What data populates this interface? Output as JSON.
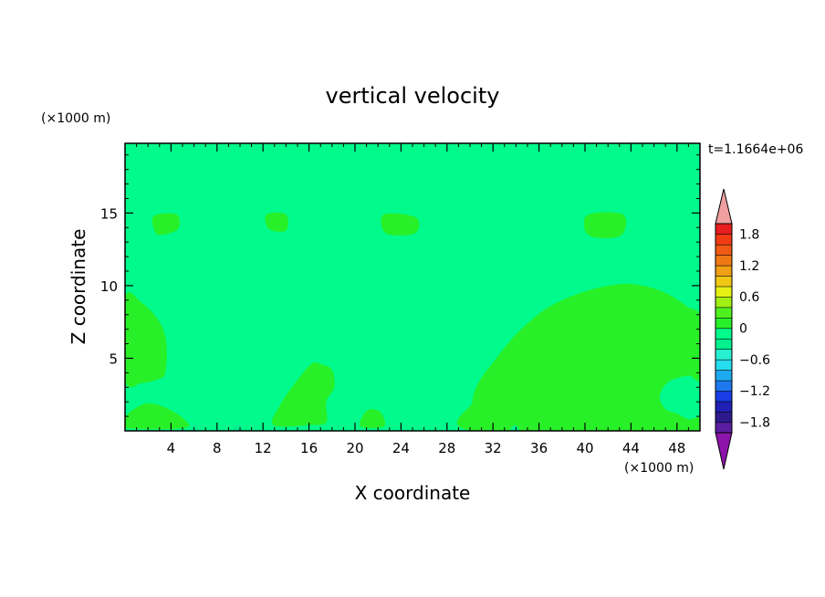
{
  "chart_data": {
    "type": "heatmap",
    "title": "vertical velocity",
    "xlabel": "X coordinate",
    "ylabel": "Z coordinate",
    "x_unit": "(×1000 m)",
    "y_unit": "(×1000 m)",
    "time_label": "t=1.1664e+06",
    "xlim": [
      0,
      50
    ],
    "ylim": [
      0,
      19.8
    ],
    "x_ticks": [
      4,
      8,
      12,
      16,
      20,
      24,
      28,
      32,
      36,
      40,
      44,
      48
    ],
    "y_ticks": [
      5,
      10,
      15
    ],
    "background_level": "-0.2 to 0",
    "colorbar": {
      "levels": [
        -2,
        -1.8,
        -1.6,
        -1.4,
        -1.2,
        -1,
        -0.8,
        -0.6,
        -0.4,
        -0.2,
        0,
        0.2,
        0.4,
        0.6,
        0.8,
        1,
        1.2,
        1.4,
        1.6,
        1.8,
        2
      ],
      "tick_labels": [
        "1.8",
        "1.2",
        "0.6",
        "0",
        "−0.6",
        "−1.2",
        "−1.8"
      ],
      "tick_values": [
        1.8,
        1.2,
        0.6,
        0,
        -0.6,
        -1.2,
        -1.8
      ],
      "colors": [
        "#5a1ea0",
        "#2d1b8e",
        "#2020b4",
        "#1a3ce6",
        "#1e78f0",
        "#1eaaf0",
        "#28dcf0",
        "#28f0d2",
        "#00f090",
        "#00fa8c",
        "#28f028",
        "#50f01e",
        "#a0f014",
        "#e6f014",
        "#f0c814",
        "#f0a014",
        "#f07814",
        "#f05a14",
        "#f03c14",
        "#e61e1e"
      ],
      "over_color": "#f0a0a0",
      "under_color": "#8c14aa"
    },
    "regions_positive": [
      {
        "level": "0 to 0.2",
        "outline": [
          [
            0,
            9.2
          ],
          [
            1.5,
            8.8
          ],
          [
            3,
            7.5
          ],
          [
            3.6,
            6
          ],
          [
            3.5,
            4
          ],
          [
            3,
            3.6
          ],
          [
            1.5,
            3.3
          ],
          [
            0,
            3.5
          ]
        ]
      },
      {
        "level": "0 to 0.2",
        "outline": [
          [
            30.4,
            0
          ],
          [
            30.2,
            2
          ],
          [
            30.8,
            3.4
          ],
          [
            32,
            4.7
          ],
          [
            33.5,
            6.2
          ],
          [
            35,
            7.4
          ],
          [
            37,
            8.6
          ],
          [
            40,
            9.6
          ],
          [
            43,
            10.1
          ],
          [
            45,
            10
          ],
          [
            47,
            9.5
          ],
          [
            49,
            8.5
          ],
          [
            50,
            7.8
          ],
          [
            50,
            3.7
          ],
          [
            49,
            3.8
          ],
          [
            47.3,
            3.4
          ],
          [
            46.5,
            2.4
          ],
          [
            47,
            1.5
          ],
          [
            48,
            1.2
          ],
          [
            49,
            0.8
          ],
          [
            50,
            0.9
          ],
          [
            50,
            0
          ]
        ]
      },
      {
        "level": "0 to 0.2",
        "outline": [
          [
            12.9,
            0.4
          ],
          [
            13.5,
            1.8
          ],
          [
            14.8,
            3.3
          ],
          [
            16.2,
            4.6
          ],
          [
            17,
            4.6
          ],
          [
            18,
            4.2
          ],
          [
            18.2,
            3
          ],
          [
            17.5,
            2
          ],
          [
            17.5,
            0.6
          ],
          [
            16,
            0.4
          ]
        ]
      },
      {
        "level": "0 to 0.2",
        "outline": [
          [
            0,
            0.9
          ],
          [
            0.8,
            1.5
          ],
          [
            2,
            1.9
          ],
          [
            3.5,
            1.6
          ],
          [
            5,
            0.9
          ],
          [
            5.2,
            0.2
          ],
          [
            0,
            0.2
          ]
        ]
      },
      {
        "level": "0 to 0.2",
        "outline": [
          [
            20.5,
            0.3
          ],
          [
            20.8,
            1.2
          ],
          [
            21.5,
            1.5
          ],
          [
            22.3,
            1.2
          ],
          [
            22.5,
            0.3
          ]
        ]
      },
      {
        "level": "0 to 0.2",
        "outline": [
          [
            2.5,
            14.8
          ],
          [
            4.5,
            14.9
          ],
          [
            4.6,
            13.9
          ],
          [
            3.2,
            13.5
          ],
          [
            2.6,
            13.7
          ]
        ]
      },
      {
        "level": "0 to 0.2",
        "outline": [
          [
            12.3,
            14.9
          ],
          [
            14,
            14.9
          ],
          [
            14,
            13.8
          ],
          [
            12.5,
            13.9
          ]
        ]
      },
      {
        "level": "0 to 0.2",
        "outline": [
          [
            22.5,
            14.9
          ],
          [
            25.3,
            14.7
          ],
          [
            25.2,
            13.6
          ],
          [
            22.7,
            13.6
          ]
        ]
      },
      {
        "level": "0 to 0.2",
        "outline": [
          [
            40.3,
            14.9
          ],
          [
            43.3,
            14.9
          ],
          [
            43.2,
            13.5
          ],
          [
            41,
            13.3
          ],
          [
            40,
            13.8
          ]
        ]
      }
    ],
    "regions_negative": [
      {
        "level": "-0.4 to -0.2",
        "outline": [
          [
            5.8,
            0
          ],
          [
            6,
            0.6
          ],
          [
            6.4,
            0.2
          ]
        ]
      },
      {
        "level": "-0.4 to -0.2",
        "outline": [
          [
            9.4,
            0
          ],
          [
            9.8,
            0.5
          ],
          [
            10.3,
            0
          ]
        ]
      },
      {
        "level": "-0.4 to -0.2",
        "outline": [
          [
            33.5,
            0
          ],
          [
            33.9,
            0.4
          ],
          [
            34.3,
            0
          ]
        ]
      }
    ]
  }
}
